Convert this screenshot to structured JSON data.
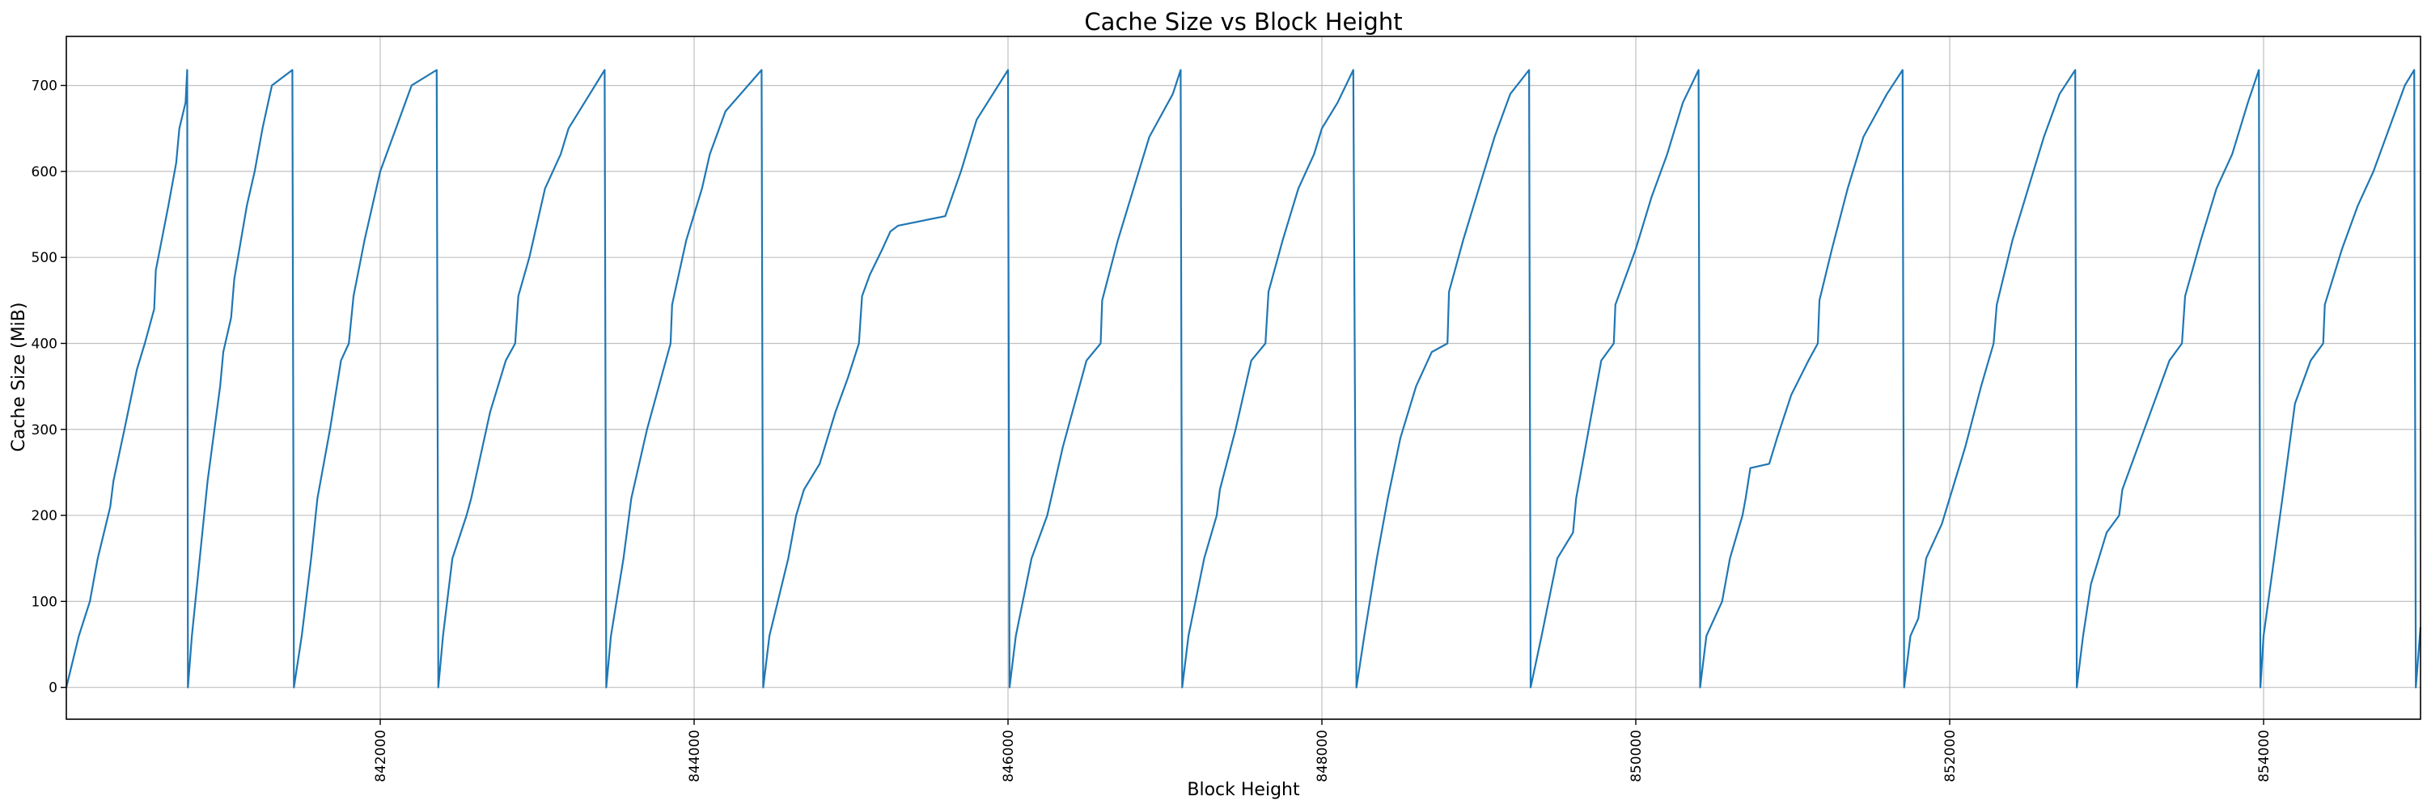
{
  "chart_data": {
    "type": "line",
    "title": "Cache Size vs Block Height",
    "xlabel": "Block Height",
    "ylabel": "Cache Size (MiB)",
    "xlim": [
      840000,
      855000
    ],
    "ylim": [
      -37,
      757
    ],
    "xticks": [
      842000,
      844000,
      846000,
      848000,
      850000,
      852000,
      854000
    ],
    "yticks": [
      0,
      100,
      200,
      300,
      400,
      500,
      600,
      700
    ],
    "x_tick_rotation": 90,
    "grid": true,
    "series": [
      {
        "color": "#1f77b4",
        "points": [
          [
            840000,
            0
          ],
          [
            840080,
            60
          ],
          [
            840150,
            100
          ],
          [
            840200,
            150
          ],
          [
            840280,
            210
          ],
          [
            840300,
            240
          ],
          [
            840370,
            300
          ],
          [
            840450,
            370
          ],
          [
            840500,
            400
          ],
          [
            840560,
            440
          ],
          [
            840570,
            485
          ],
          [
            840650,
            560
          ],
          [
            840700,
            610
          ],
          [
            840720,
            650
          ],
          [
            840760,
            680
          ],
          [
            840770,
            718
          ],
          [
            840775,
            0
          ],
          [
            840800,
            60
          ],
          [
            840850,
            150
          ],
          [
            840900,
            240
          ],
          [
            840980,
            350
          ],
          [
            841000,
            390
          ],
          [
            841050,
            430
          ],
          [
            841070,
            475
          ],
          [
            841150,
            560
          ],
          [
            841200,
            600
          ],
          [
            841250,
            650
          ],
          [
            841310,
            700
          ],
          [
            841440,
            718
          ],
          [
            841450,
            0
          ],
          [
            841500,
            60
          ],
          [
            841560,
            150
          ],
          [
            841600,
            220
          ],
          [
            841680,
            300
          ],
          [
            841750,
            380
          ],
          [
            841800,
            400
          ],
          [
            841830,
            455
          ],
          [
            841900,
            520
          ],
          [
            842000,
            600
          ],
          [
            842100,
            650
          ],
          [
            842200,
            700
          ],
          [
            842360,
            718
          ],
          [
            842370,
            0
          ],
          [
            842400,
            60
          ],
          [
            842460,
            150
          ],
          [
            842550,
            200
          ],
          [
            842580,
            220
          ],
          [
            842700,
            320
          ],
          [
            842800,
            380
          ],
          [
            842860,
            400
          ],
          [
            842880,
            455
          ],
          [
            842950,
            500
          ],
          [
            843050,
            580
          ],
          [
            843150,
            620
          ],
          [
            843200,
            650
          ],
          [
            843430,
            718
          ],
          [
            843440,
            0
          ],
          [
            843470,
            60
          ],
          [
            843550,
            150
          ],
          [
            843600,
            220
          ],
          [
            843700,
            300
          ],
          [
            843850,
            400
          ],
          [
            843860,
            445
          ],
          [
            843950,
            520
          ],
          [
            844050,
            580
          ],
          [
            844100,
            620
          ],
          [
            844200,
            670
          ],
          [
            844430,
            718
          ],
          [
            844440,
            0
          ],
          [
            844480,
            60
          ],
          [
            844600,
            150
          ],
          [
            844650,
            200
          ],
          [
            844700,
            230
          ],
          [
            844800,
            260
          ],
          [
            844900,
            320
          ],
          [
            844980,
            360
          ],
          [
            845050,
            400
          ],
          [
            845070,
            455
          ],
          [
            845120,
            480
          ],
          [
            845200,
            510
          ],
          [
            845250,
            530
          ],
          [
            845300,
            537
          ],
          [
            845600,
            548
          ],
          [
            845700,
            600
          ],
          [
            845800,
            660
          ],
          [
            846000,
            718
          ],
          [
            846010,
            0
          ],
          [
            846050,
            60
          ],
          [
            846150,
            150
          ],
          [
            846250,
            200
          ],
          [
            846350,
            280
          ],
          [
            846500,
            380
          ],
          [
            846590,
            400
          ],
          [
            846600,
            450
          ],
          [
            846700,
            520
          ],
          [
            846800,
            580
          ],
          [
            846900,
            640
          ],
          [
            847050,
            690
          ],
          [
            847100,
            718
          ],
          [
            847110,
            0
          ],
          [
            847150,
            60
          ],
          [
            847250,
            150
          ],
          [
            847330,
            200
          ],
          [
            847350,
            230
          ],
          [
            847450,
            300
          ],
          [
            847550,
            380
          ],
          [
            847640,
            400
          ],
          [
            847660,
            460
          ],
          [
            847750,
            520
          ],
          [
            847850,
            580
          ],
          [
            847950,
            620
          ],
          [
            848000,
            650
          ],
          [
            848100,
            680
          ],
          [
            848200,
            718
          ],
          [
            848220,
            0
          ],
          [
            848270,
            60
          ],
          [
            848350,
            150
          ],
          [
            848400,
            200
          ],
          [
            848420,
            220
          ],
          [
            848500,
            290
          ],
          [
            848600,
            350
          ],
          [
            848700,
            390
          ],
          [
            848800,
            400
          ],
          [
            848810,
            460
          ],
          [
            848900,
            520
          ],
          [
            849000,
            580
          ],
          [
            849100,
            640
          ],
          [
            849200,
            690
          ],
          [
            849320,
            718
          ],
          [
            849330,
            0
          ],
          [
            849400,
            60
          ],
          [
            849500,
            150
          ],
          [
            849600,
            180
          ],
          [
            849620,
            220
          ],
          [
            849700,
            300
          ],
          [
            849780,
            380
          ],
          [
            849860,
            400
          ],
          [
            849870,
            445
          ],
          [
            850000,
            510
          ],
          [
            850100,
            570
          ],
          [
            850200,
            620
          ],
          [
            850300,
            680
          ],
          [
            850400,
            718
          ],
          [
            850410,
            0
          ],
          [
            850450,
            60
          ],
          [
            850550,
            100
          ],
          [
            850600,
            150
          ],
          [
            850680,
            200
          ],
          [
            850700,
            220
          ],
          [
            850730,
            255
          ],
          [
            850850,
            260
          ],
          [
            850900,
            290
          ],
          [
            850990,
            340
          ],
          [
            851100,
            380
          ],
          [
            851160,
            400
          ],
          [
            851170,
            450
          ],
          [
            851250,
            510
          ],
          [
            851350,
            580
          ],
          [
            851450,
            640
          ],
          [
            851600,
            690
          ],
          [
            851700,
            718
          ],
          [
            851710,
            0
          ],
          [
            851750,
            60
          ],
          [
            851800,
            80
          ],
          [
            851850,
            150
          ],
          [
            851950,
            190
          ],
          [
            852000,
            220
          ],
          [
            852100,
            280
          ],
          [
            852200,
            350
          ],
          [
            852280,
            400
          ],
          [
            852300,
            445
          ],
          [
            852400,
            520
          ],
          [
            852500,
            580
          ],
          [
            852600,
            640
          ],
          [
            852700,
            690
          ],
          [
            852800,
            718
          ],
          [
            852810,
            0
          ],
          [
            852850,
            60
          ],
          [
            852900,
            120
          ],
          [
            853000,
            180
          ],
          [
            853080,
            200
          ],
          [
            853100,
            230
          ],
          [
            853200,
            280
          ],
          [
            853300,
            330
          ],
          [
            853400,
            380
          ],
          [
            853480,
            400
          ],
          [
            853500,
            455
          ],
          [
            853600,
            520
          ],
          [
            853700,
            580
          ],
          [
            853800,
            620
          ],
          [
            853900,
            680
          ],
          [
            853970,
            718
          ],
          [
            853980,
            0
          ],
          [
            854000,
            60
          ],
          [
            854060,
            140
          ],
          [
            854120,
            220
          ],
          [
            854200,
            330
          ],
          [
            854300,
            380
          ],
          [
            854380,
            400
          ],
          [
            854390,
            445
          ],
          [
            854500,
            510
          ],
          [
            854600,
            560
          ],
          [
            854700,
            600
          ],
          [
            854800,
            650
          ],
          [
            854900,
            700
          ],
          [
            854960,
            718
          ],
          [
            854970,
            0
          ],
          [
            855000,
            70
          ]
        ]
      }
    ]
  }
}
